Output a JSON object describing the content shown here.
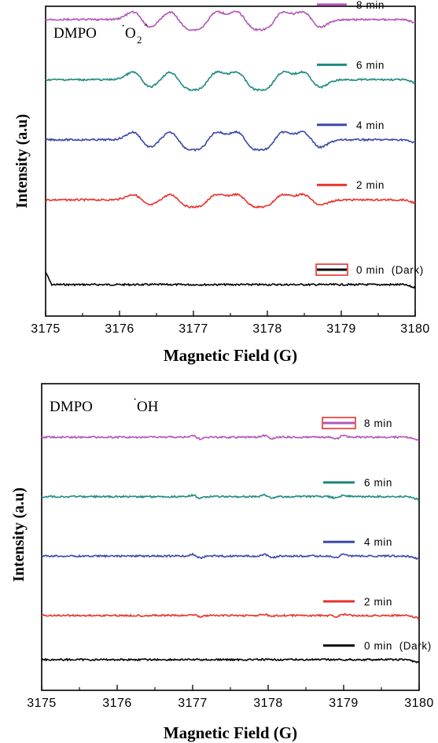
{
  "chart_data": [
    {
      "type": "line",
      "title": "",
      "annotation": {
        "probe": "DMPO",
        "species": "O",
        "subscript": "2",
        "superscript": "-",
        "radical_dot": "·"
      },
      "xlabel": "Magnetic Field (G)",
      "ylabel": "Intensity (a.u)",
      "xlim": [
        3175,
        3180
      ],
      "xticks": [
        "3175",
        "3176",
        "3177",
        "3178",
        "3179",
        "3180"
      ],
      "legend_position": "right, beside each trace",
      "y_ticks_shown": false,
      "grid": false,
      "series": [
        {
          "name": "0 min  (Dark)",
          "color": "#000000",
          "offset": 0.0,
          "amp": 0.0,
          "marker_box": true
        },
        {
          "name": "2 min",
          "color": "#e8322d",
          "offset": 0.55,
          "amp": 0.035
        },
        {
          "name": "4 min",
          "color": "#3c48a8",
          "offset": 0.94,
          "amp": 0.05
        },
        {
          "name": "6 min",
          "color": "#1f8a80",
          "offset": 1.33,
          "amp": 0.05
        },
        {
          "name": "8 min",
          "color": "#b455b8",
          "offset": 1.72,
          "amp": 0.05
        }
      ],
      "peak_positions_G": [
        3176.3,
        3176.8,
        3177.2,
        3177.7,
        3178.1,
        3178.6
      ],
      "peak_signs": [
        1,
        1,
        -1,
        1,
        -1,
        1
      ]
    },
    {
      "type": "line",
      "title": "",
      "annotation": {
        "probe": "DMPO",
        "species": "OH",
        "radical_dot": "·"
      },
      "xlabel": "Magnetic Field (G)",
      "ylabel": "Intensity (a.u)",
      "xlim": [
        3175,
        3180
      ],
      "xticks": [
        "3175",
        "3176",
        "3177",
        "3178",
        "3179",
        "3180"
      ],
      "legend_position": "right, beside each trace",
      "y_ticks_shown": false,
      "grid": false,
      "series": [
        {
          "name": "0 min  (Dark)",
          "color": "#000000",
          "offset": 0.0,
          "amp": 0.0
        },
        {
          "name": "2 min",
          "color": "#e8322d",
          "offset": 0.52,
          "amp": 0.012
        },
        {
          "name": "4 min",
          "color": "#3c48a8",
          "offset": 1.22,
          "amp": 0.02
        },
        {
          "name": "6 min",
          "color": "#1f8a80",
          "offset": 1.92,
          "amp": 0.018
        },
        {
          "name": "8 min",
          "color": "#b455b8",
          "offset": 2.62,
          "amp": 0.02,
          "marker_box": true
        }
      ],
      "peak_positions_G": [
        3177.05,
        3178.0,
        3178.95
      ],
      "peak_signs": [
        1,
        1,
        -1
      ]
    }
  ]
}
